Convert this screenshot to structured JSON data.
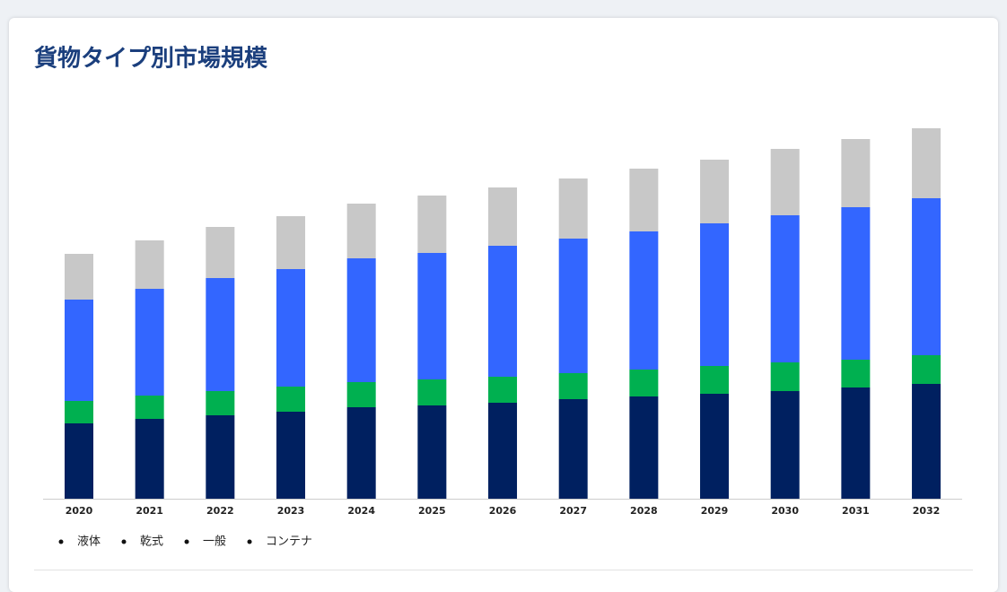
{
  "chart_data": {
    "type": "stacked-bar",
    "title": "貨物タイプ別市場規模",
    "categories": [
      "2020",
      "2021",
      "2022",
      "2023",
      "2024",
      "2025",
      "2026",
      "2027",
      "2028",
      "2029",
      "2030",
      "2031",
      "2032"
    ],
    "series": [
      {
        "name": "液体",
        "color": "#002060",
        "values": [
          84,
          89,
          93,
          97,
          102,
          104,
          107,
          111,
          114,
          117,
          120,
          124,
          128
        ]
      },
      {
        "name": "乾式",
        "color": "#00b050",
        "values": [
          25,
          26,
          27,
          28,
          28,
          29,
          29,
          29,
          30,
          31,
          32,
          31,
          32
        ]
      },
      {
        "name": "一般",
        "color": "#3366ff",
        "values": [
          113,
          119,
          126,
          131,
          138,
          141,
          146,
          150,
          154,
          159,
          164,
          170,
          175
        ]
      },
      {
        "name": "コンテナ",
        "color": "#c8c8c8",
        "values": [
          51,
          54,
          57,
          59,
          61,
          64,
          65,
          67,
          70,
          71,
          74,
          76,
          78
        ]
      }
    ]
  }
}
